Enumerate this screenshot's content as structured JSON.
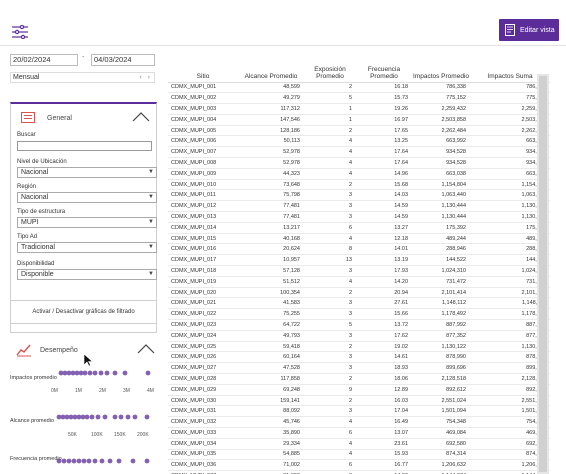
{
  "toolbar": {
    "edit_label": "Editar vista",
    "accent": "#5b2c9a"
  },
  "dates": {
    "start": "20/02/2024",
    "separator": "-",
    "end": "04/03/2024",
    "period": "Mensual"
  },
  "general": {
    "title": "General",
    "search_label": "Buscar",
    "filters": [
      {
        "label": "Nivel de Ubicación",
        "value": "Nacional"
      },
      {
        "label": "Región",
        "value": "Nacional"
      },
      {
        "label": "Tipo de estructura",
        "value": "MUPI"
      },
      {
        "label": "Tipo Ad",
        "value": "Tradicional"
      },
      {
        "label": "Disponibilidad",
        "value": "Disponible"
      }
    ]
  },
  "toggle_label": "Activar / Desactivar gráficas de filtrado",
  "performance": {
    "title": "Desempeño",
    "metrics": [
      {
        "label": "Impactos promedio",
        "ticks": [
          "0M",
          "1M",
          "2M",
          "3M",
          "4M"
        ]
      },
      {
        "label": "Alcance promedio",
        "ticks": [
          "50K",
          "100K",
          "150K",
          "200K"
        ]
      },
      {
        "label": "Frecuencia promedio",
        "ticks": []
      }
    ]
  },
  "table": {
    "columns": [
      "Sitio",
      "Alcance Promedio",
      "Exposición Promedio",
      "Frecuencia Promedio",
      "Impactos Promedio",
      "Impactos Suma"
    ],
    "rows": [
      [
        "CDMX_MUPI_001",
        "48,599",
        "2",
        "16.18",
        "786,338",
        "786,338"
      ],
      [
        "CDMX_MUPI_002",
        "49,279",
        "5",
        "15.73",
        "775,152",
        "775,152"
      ],
      [
        "CDMX_MUPI_003",
        "117,312",
        "1",
        "19.26",
        "2,259,432",
        "2,259,432"
      ],
      [
        "CDMX_MUPI_004",
        "147,546",
        "1",
        "16.97",
        "2,503,858",
        "2,503,858"
      ],
      [
        "CDMX_MUPI_005",
        "128,186",
        "2",
        "17.65",
        "2,262,484",
        "2,262,484"
      ],
      [
        "CDMX_MUPI_006",
        "50,113",
        "4",
        "13.25",
        "663,992",
        "663,992"
      ],
      [
        "CDMX_MUPI_007",
        "52,978",
        "4",
        "17.64",
        "934,528",
        "934,528"
      ],
      [
        "CDMX_MUPI_008",
        "52,978",
        "4",
        "17.64",
        "934,528",
        "934,528"
      ],
      [
        "CDMX_MUPI_009",
        "44,323",
        "4",
        "14.96",
        "663,038",
        "663,038"
      ],
      [
        "CDMX_MUPI_010",
        "73,648",
        "2",
        "15.68",
        "1,154,804",
        "1,154,804"
      ],
      [
        "CDMX_MUPI_011",
        "75,798",
        "3",
        "14.03",
        "1,063,440",
        "1,063,440"
      ],
      [
        "CDMX_MUPI_012",
        "77,481",
        "3",
        "14.59",
        "1,130,444",
        "1,130,444"
      ],
      [
        "CDMX_MUPI_013",
        "77,481",
        "3",
        "14.59",
        "1,130,444",
        "1,130,444"
      ],
      [
        "CDMX_MUPI_014",
        "13,217",
        "6",
        "13.27",
        "175,392",
        "175,392"
      ],
      [
        "CDMX_MUPI_015",
        "40,168",
        "4",
        "12.18",
        "489,244",
        "489,244"
      ],
      [
        "CDMX_MUPI_016",
        "20,624",
        "8",
        "14.01",
        "288,946",
        "288,946"
      ],
      [
        "CDMX_MUPI_017",
        "10,957",
        "13",
        "13.19",
        "144,522",
        "144,522"
      ],
      [
        "CDMX_MUPI_018",
        "57,128",
        "3",
        "17.93",
        "1,024,310",
        "1,024,310"
      ],
      [
        "CDMX_MUPI_019",
        "51,512",
        "4",
        "14.20",
        "731,472",
        "731,472"
      ],
      [
        "CDMX_MUPI_020",
        "100,354",
        "2",
        "20.94",
        "2,101,414",
        "2,101,414"
      ],
      [
        "CDMX_MUPI_021",
        "41,583",
        "3",
        "27.61",
        "1,148,112",
        "1,148,112"
      ],
      [
        "CDMX_MUPI_022",
        "75,255",
        "3",
        "15.66",
        "1,178,492",
        "1,178,492"
      ],
      [
        "CDMX_MUPI_023",
        "64,722",
        "5",
        "13.72",
        "887,992",
        "887,992"
      ],
      [
        "CDMX_MUPI_024",
        "49,793",
        "3",
        "17.62",
        "877,352",
        "877,352"
      ],
      [
        "CDMX_MUPI_025",
        "59,418",
        "2",
        "19.02",
        "1,130,122",
        "1,130,122"
      ],
      [
        "CDMX_MUPI_026",
        "60,164",
        "3",
        "14.61",
        "878,990",
        "878,990"
      ],
      [
        "CDMX_MUPI_027",
        "47,528",
        "3",
        "18.93",
        "899,696",
        "899,696"
      ],
      [
        "CDMX_MUPI_028",
        "117,858",
        "2",
        "18.06",
        "2,128,518",
        "2,128,518"
      ],
      [
        "CDMX_MUPI_029",
        "69,248",
        "9",
        "12.89",
        "892,612",
        "892,612"
      ],
      [
        "CDMX_MUPI_030",
        "159,141",
        "2",
        "16.03",
        "2,551,024",
        "2,551,024"
      ],
      [
        "CDMX_MUPI_031",
        "88,092",
        "3",
        "17.04",
        "1,501,094",
        "1,501,094"
      ],
      [
        "CDMX_MUPI_032",
        "45,746",
        "4",
        "16.49",
        "754,348",
        "754,348"
      ],
      [
        "CDMX_MUPI_033",
        "35,890",
        "6",
        "13.07",
        "469,084",
        "469,084"
      ],
      [
        "CDMX_MUPI_034",
        "29,334",
        "4",
        "23.61",
        "692,580",
        "692,580"
      ],
      [
        "CDMX_MUPI_035",
        "54,885",
        "4",
        "15.93",
        "874,314",
        "874,314"
      ],
      [
        "CDMX_MUPI_036",
        "71,002",
        "6",
        "16.77",
        "1,206,632",
        "1,206,632"
      ],
      [
        "CDMX_MUPI_037",
        "81,392",
        "3",
        "14.06",
        "1,144,374",
        "1,144,374"
      ]
    ]
  }
}
